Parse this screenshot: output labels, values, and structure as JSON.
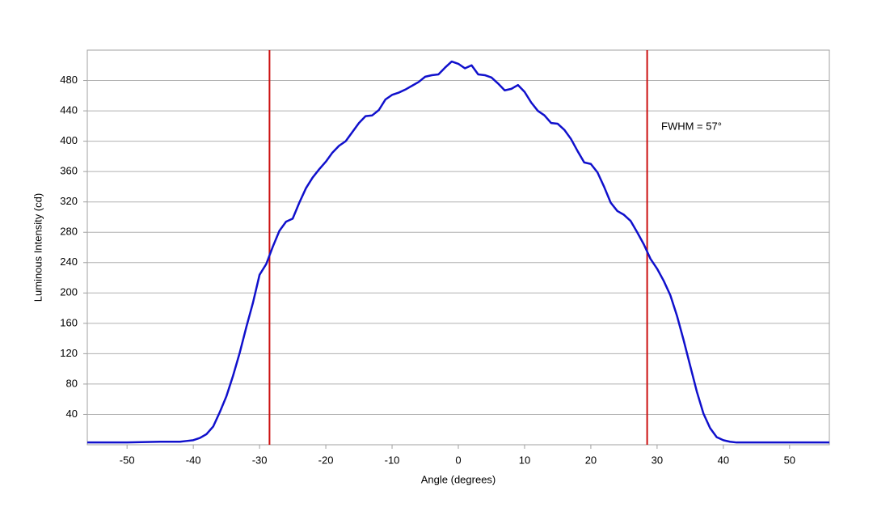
{
  "chart_data": {
    "type": "line",
    "x_label": "Angle (degrees)",
    "y_label": "Luminous Intensity (cd)",
    "annotation": "FWHM = 57°",
    "x": [
      -56,
      -50,
      -45,
      -42,
      -41,
      -40,
      -39,
      -38,
      -37,
      -36,
      -35,
      -34,
      -33,
      -32,
      -31,
      -30,
      -29,
      -28,
      -27,
      -26,
      -25,
      -24,
      -23,
      -22,
      -21,
      -20,
      -19,
      -18,
      -17,
      -16,
      -15,
      -14,
      -13,
      -12,
      -11,
      -10,
      -9,
      -8,
      -7,
      -6,
      -5,
      -4,
      -3,
      -2,
      -1,
      0,
      1,
      2,
      3,
      4,
      5,
      6,
      7,
      8,
      9,
      10,
      11,
      12,
      13,
      14,
      15,
      16,
      17,
      18,
      19,
      20,
      21,
      22,
      23,
      24,
      25,
      26,
      27,
      28,
      29,
      30,
      31,
      32,
      33,
      34,
      35,
      36,
      37,
      38,
      39,
      40,
      41,
      42,
      45,
      50,
      56
    ],
    "series": [
      {
        "name": "Luminous Intensity",
        "color": "#1010cc",
        "values": [
          3,
          3,
          4,
          4,
          5,
          6,
          9,
          14,
          24,
          43,
          64,
          91,
          121,
          155,
          187,
          224,
          238,
          261,
          282,
          294,
          298,
          319,
          338,
          352,
          363,
          373,
          385,
          394,
          400,
          412,
          424,
          433,
          434,
          441,
          455,
          461,
          464,
          468,
          473,
          478,
          485,
          487,
          488,
          497,
          505,
          502,
          496,
          500,
          488,
          487,
          484,
          476,
          467,
          469,
          474,
          465,
          451,
          440,
          434,
          424,
          423,
          415,
          403,
          387,
          372,
          370,
          359,
          340,
          319,
          308,
          303,
          295,
          280,
          264,
          245,
          232,
          216,
          197,
          170,
          138,
          104,
          70,
          41,
          22,
          10,
          6,
          4,
          3,
          3,
          3,
          3
        ]
      }
    ],
    "fwhm_lines": [
      -28.5,
      28.5
    ],
    "fwhm_color": "#cc1010",
    "xlim": [
      -56,
      56
    ],
    "xticks": [
      -50,
      -40,
      -30,
      -20,
      -10,
      0,
      10,
      20,
      30,
      40,
      50
    ],
    "ylim": [
      0,
      520
    ],
    "yticks": [
      40,
      80,
      120,
      160,
      200,
      240,
      280,
      320,
      360,
      400,
      440,
      480
    ],
    "grid": true
  }
}
